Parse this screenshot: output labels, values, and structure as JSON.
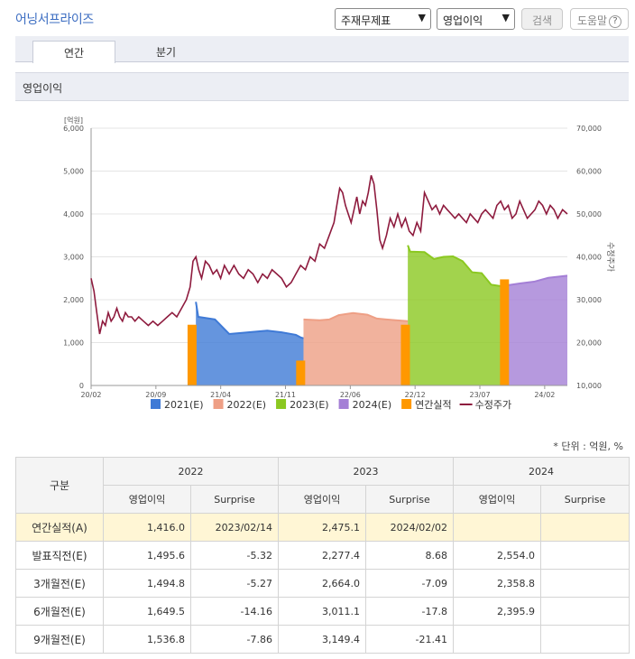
{
  "header": {
    "title": "어닝서프라이즈",
    "select_period": "주재무제표",
    "select_metric": "영업이익",
    "search_label": "검색",
    "help_label": "도움말",
    "help_icon": "?"
  },
  "tabs": [
    {
      "label": "연간",
      "active": true
    },
    {
      "label": "분기",
      "active": false
    }
  ],
  "section_title": "영업이익",
  "chart_data": {
    "type": "area",
    "y_left_unit": "[억원]",
    "y_left_ticks": [
      "6,000",
      "5,000",
      "4,000",
      "3,000",
      "2,000",
      "1,000",
      "0"
    ],
    "y_right_ticks": [
      "70,000",
      "60,000",
      "50,000",
      "40,000",
      "30,000",
      "20,000",
      "10,000"
    ],
    "y_right_label": "수정주가",
    "ylim_left": [
      0,
      6000
    ],
    "ylim_right": [
      10000,
      70000
    ],
    "x_ticks": [
      "20/02",
      "20/09",
      "21/04",
      "21/11",
      "22/06",
      "22/12",
      "23/07",
      "24/02"
    ],
    "legend": [
      {
        "name": "2021(E)",
        "color": "#3f7ad6",
        "kind": "box"
      },
      {
        "name": "2022(E)",
        "color": "#ee9f85",
        "kind": "box"
      },
      {
        "name": "2023(E)",
        "color": "#8bc820",
        "kind": "box"
      },
      {
        "name": "2024(E)",
        "color": "#a47fd6",
        "kind": "box"
      },
      {
        "name": "연간실적",
        "color": "#ff9800",
        "kind": "box"
      },
      {
        "name": "수정주가",
        "color": "#8e1b3e",
        "kind": "line"
      }
    ],
    "estimate_series": [
      {
        "name": "2021(E)",
        "color": "#3f7ad6",
        "points": [
          [
            0.22,
            1950
          ],
          [
            0.225,
            1600
          ],
          [
            0.26,
            1540
          ],
          [
            0.29,
            1200
          ],
          [
            0.33,
            1240
          ],
          [
            0.37,
            1280
          ],
          [
            0.4,
            1240
          ],
          [
            0.43,
            1180
          ],
          [
            0.44,
            1120
          ],
          [
            0.446,
            1100
          ]
        ]
      },
      {
        "name": "2022(E)",
        "color": "#ee9f85",
        "points": [
          [
            0.446,
            1540
          ],
          [
            0.48,
            1520
          ],
          [
            0.5,
            1540
          ],
          [
            0.52,
            1640
          ],
          [
            0.55,
            1690
          ],
          [
            0.58,
            1650
          ],
          [
            0.6,
            1560
          ],
          [
            0.62,
            1540
          ],
          [
            0.64,
            1520
          ],
          [
            0.665,
            1500
          ]
        ]
      },
      {
        "name": "2023(E)",
        "color": "#8bc820",
        "points": [
          [
            0.665,
            3270
          ],
          [
            0.67,
            3120
          ],
          [
            0.7,
            3110
          ],
          [
            0.72,
            2950
          ],
          [
            0.74,
            3000
          ],
          [
            0.76,
            3010
          ],
          [
            0.78,
            2900
          ],
          [
            0.8,
            2640
          ],
          [
            0.82,
            2620
          ],
          [
            0.84,
            2350
          ],
          [
            0.87,
            2300
          ]
        ]
      },
      {
        "name": "2024(E)",
        "color": "#a47fd6",
        "points": [
          [
            0.87,
            2330
          ],
          [
            0.9,
            2380
          ],
          [
            0.93,
            2420
          ],
          [
            0.96,
            2510
          ],
          [
            1.0,
            2560
          ]
        ]
      }
    ],
    "annual_actual_bars": [
      {
        "x": 0.212,
        "value": 1416
      },
      {
        "x": 0.44,
        "value": 580
      },
      {
        "x": 0.66,
        "value": 1416
      },
      {
        "x": 0.868,
        "value": 2475
      }
    ],
    "stock_price": [
      [
        0.0,
        35000
      ],
      [
        0.006,
        32000
      ],
      [
        0.012,
        27000
      ],
      [
        0.018,
        22000
      ],
      [
        0.024,
        25000
      ],
      [
        0.03,
        24000
      ],
      [
        0.036,
        27000
      ],
      [
        0.042,
        25000
      ],
      [
        0.048,
        26000
      ],
      [
        0.054,
        28000
      ],
      [
        0.06,
        26000
      ],
      [
        0.066,
        25000
      ],
      [
        0.072,
        27000
      ],
      [
        0.078,
        26000
      ],
      [
        0.085,
        26000
      ],
      [
        0.092,
        25000
      ],
      [
        0.1,
        26000
      ],
      [
        0.11,
        25000
      ],
      [
        0.12,
        24000
      ],
      [
        0.13,
        25000
      ],
      [
        0.14,
        24000
      ],
      [
        0.15,
        25000
      ],
      [
        0.16,
        26000
      ],
      [
        0.17,
        27000
      ],
      [
        0.18,
        26000
      ],
      [
        0.19,
        28000
      ],
      [
        0.2,
        30000
      ],
      [
        0.208,
        33000
      ],
      [
        0.214,
        39000
      ],
      [
        0.22,
        40000
      ],
      [
        0.226,
        37000
      ],
      [
        0.232,
        35000
      ],
      [
        0.24,
        39000
      ],
      [
        0.248,
        38000
      ],
      [
        0.256,
        36000
      ],
      [
        0.264,
        37000
      ],
      [
        0.272,
        35000
      ],
      [
        0.28,
        38000
      ],
      [
        0.29,
        36000
      ],
      [
        0.3,
        38000
      ],
      [
        0.31,
        36000
      ],
      [
        0.32,
        35000
      ],
      [
        0.33,
        37000
      ],
      [
        0.34,
        36000
      ],
      [
        0.35,
        34000
      ],
      [
        0.36,
        36000
      ],
      [
        0.37,
        35000
      ],
      [
        0.38,
        37000
      ],
      [
        0.39,
        36000
      ],
      [
        0.4,
        35000
      ],
      [
        0.41,
        33000
      ],
      [
        0.42,
        34000
      ],
      [
        0.43,
        36000
      ],
      [
        0.44,
        38000
      ],
      [
        0.45,
        37000
      ],
      [
        0.46,
        40000
      ],
      [
        0.47,
        39000
      ],
      [
        0.48,
        43000
      ],
      [
        0.49,
        42000
      ],
      [
        0.5,
        45000
      ],
      [
        0.51,
        48000
      ],
      [
        0.516,
        52000
      ],
      [
        0.522,
        56000
      ],
      [
        0.528,
        55000
      ],
      [
        0.534,
        52000
      ],
      [
        0.54,
        50000
      ],
      [
        0.546,
        48000
      ],
      [
        0.552,
        51000
      ],
      [
        0.558,
        54000
      ],
      [
        0.564,
        50000
      ],
      [
        0.57,
        53000
      ],
      [
        0.576,
        52000
      ],
      [
        0.582,
        55000
      ],
      [
        0.588,
        59000
      ],
      [
        0.594,
        57000
      ],
      [
        0.6,
        51000
      ],
      [
        0.606,
        44000
      ],
      [
        0.612,
        42000
      ],
      [
        0.62,
        45000
      ],
      [
        0.628,
        49000
      ],
      [
        0.636,
        47000
      ],
      [
        0.644,
        50000
      ],
      [
        0.652,
        47000
      ],
      [
        0.66,
        49000
      ],
      [
        0.668,
        46000
      ],
      [
        0.676,
        45000
      ],
      [
        0.684,
        48000
      ],
      [
        0.692,
        46000
      ],
      [
        0.7,
        55000
      ],
      [
        0.708,
        53000
      ],
      [
        0.716,
        51000
      ],
      [
        0.724,
        52000
      ],
      [
        0.732,
        50000
      ],
      [
        0.74,
        52000
      ],
      [
        0.748,
        51000
      ],
      [
        0.756,
        50000
      ],
      [
        0.764,
        49000
      ],
      [
        0.772,
        50000
      ],
      [
        0.78,
        49000
      ],
      [
        0.788,
        48000
      ],
      [
        0.796,
        50000
      ],
      [
        0.804,
        49000
      ],
      [
        0.812,
        48000
      ],
      [
        0.82,
        50000
      ],
      [
        0.828,
        51000
      ],
      [
        0.836,
        50000
      ],
      [
        0.844,
        49000
      ],
      [
        0.852,
        52000
      ],
      [
        0.86,
        53000
      ],
      [
        0.868,
        51000
      ],
      [
        0.876,
        52000
      ],
      [
        0.884,
        49000
      ],
      [
        0.892,
        50000
      ],
      [
        0.9,
        53000
      ],
      [
        0.908,
        51000
      ],
      [
        0.916,
        49000
      ],
      [
        0.924,
        50000
      ],
      [
        0.932,
        51000
      ],
      [
        0.94,
        53000
      ],
      [
        0.948,
        52000
      ],
      [
        0.956,
        50000
      ],
      [
        0.964,
        52000
      ],
      [
        0.972,
        51000
      ],
      [
        0.98,
        49000
      ],
      [
        0.99,
        51000
      ],
      [
        1.0,
        50000
      ]
    ]
  },
  "unit_note": "* 단위 : 억원, %",
  "table": {
    "corner": "구분",
    "years": [
      "2022",
      "2023",
      "2024"
    ],
    "sub_headers": [
      "영업이익",
      "Surprise",
      "영업이익",
      "Surprise",
      "영업이익",
      "Surprise"
    ],
    "rows": [
      {
        "label": "연간실적(A)",
        "cells": [
          "1,416.0",
          "2023/02/14",
          "2,475.1",
          "2024/02/02",
          "",
          ""
        ]
      },
      {
        "label": "발표직전(E)",
        "cells": [
          "1,495.6",
          "-5.32",
          "2,277.4",
          "8.68",
          "2,554.0",
          ""
        ]
      },
      {
        "label": "3개월전(E)",
        "cells": [
          "1,494.8",
          "-5.27",
          "2,664.0",
          "-7.09",
          "2,358.8",
          ""
        ]
      },
      {
        "label": "6개월전(E)",
        "cells": [
          "1,649.5",
          "-14.16",
          "3,011.1",
          "-17.8",
          "2,395.9",
          ""
        ]
      },
      {
        "label": "9개월전(E)",
        "cells": [
          "1,536.8",
          "-7.86",
          "3,149.4",
          "-21.41",
          "",
          ""
        ]
      }
    ]
  }
}
